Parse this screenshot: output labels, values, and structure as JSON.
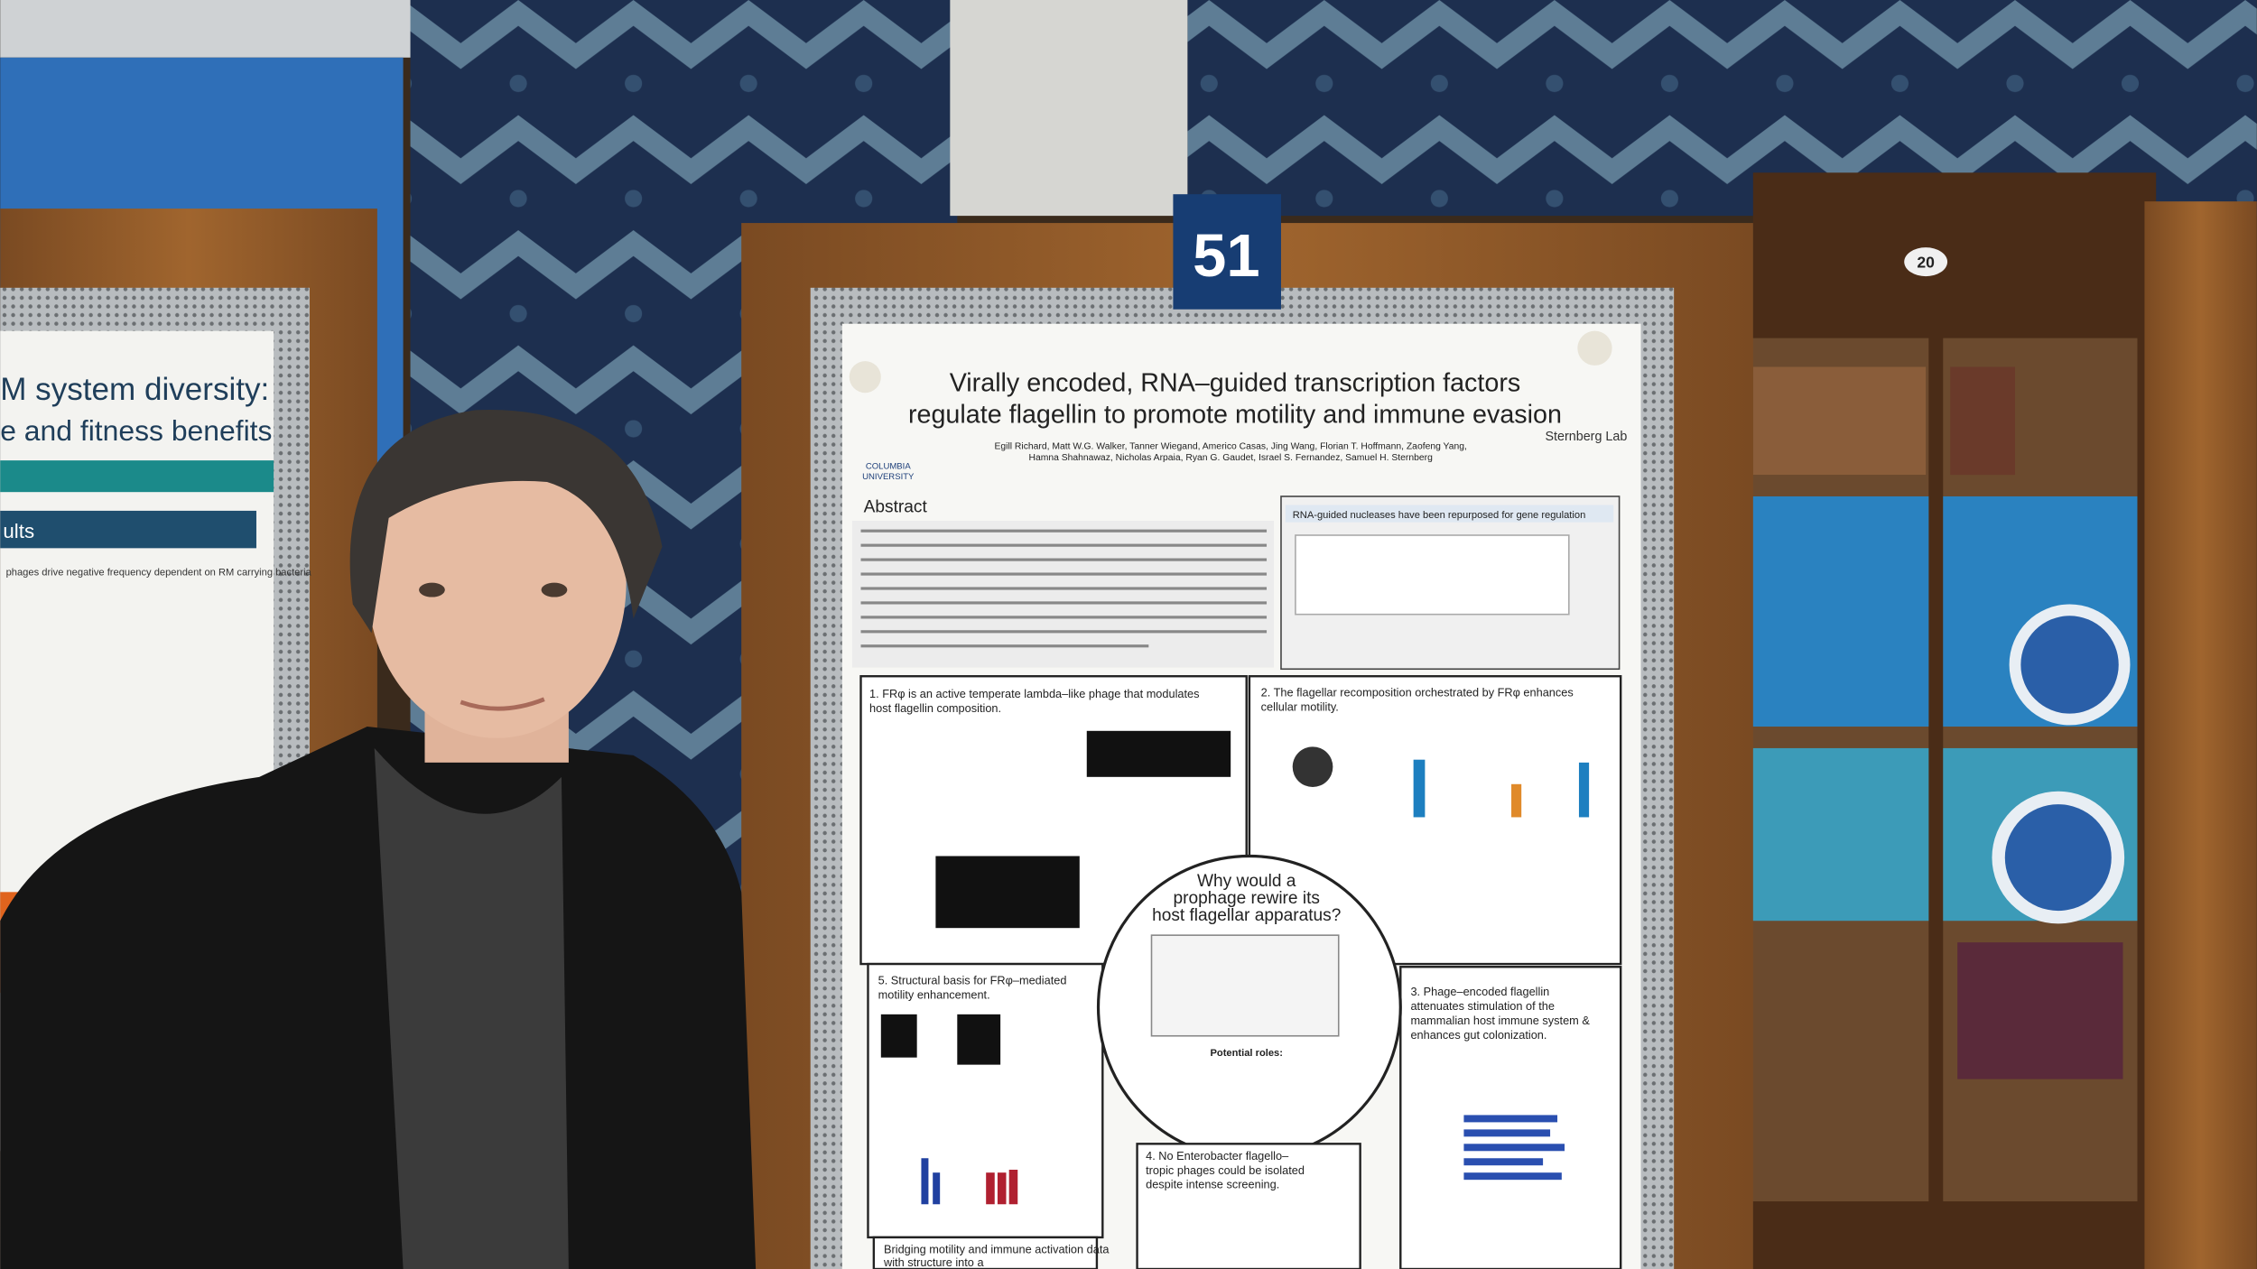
{
  "left_poster": {
    "title_lines": [
      "M system diversity:",
      "e and fitness benefits"
    ],
    "section": "ults",
    "text": "phages drive negative frequency dependent on RM carrying bacteria"
  },
  "board_number": "51",
  "cabinet_number": "20",
  "poster": {
    "title_lines": [
      "Virally encoded, RNA–guided transcription factors",
      "regulate flagellin to promote motility and immune evasion"
    ],
    "authors": "Egill Richard, Matt W.G. Walker, Tanner Wiegand, Americo Casas, Jing Wang, Florian T. Hoffmann, Zaofeng Yang,",
    "authors2": "Hamna Shahnawaz, Nicholas Arpaia, Ryan G. Gaudet, Israel S. Fernandez, Samuel H. Sternberg",
    "left_logo": [
      "COLUMBIA",
      "UNIVERSITY"
    ],
    "right_logo": "Sternberg Lab",
    "abstract_heading": "Abstract",
    "box_heading": "RNA-guided nucleases have been repurposed for gene regulation",
    "section1": [
      "1. FRφ is an active temperate lambda–like phage that modulates",
      "host flagellin composition."
    ],
    "section2": [
      "2. The flagellar recomposition orchestrated by FRφ enhances",
      "cellular motility."
    ],
    "question": [
      "Why would a",
      "prophage rewire its",
      "host flagellar apparatus?"
    ],
    "potential_roles": "Potential roles:",
    "section5": [
      "5. Structural basis for FRφ–mediated",
      "motility enhancement."
    ],
    "section3": [
      "3. Phage–encoded flagellin",
      "attenuates stimulation of the",
      "mammalian host immune system &",
      "enhances gut colonization."
    ],
    "section4": [
      "4. No Enterobacter flagello–",
      "tropic phages could be isolated",
      "despite intense screening."
    ],
    "bottom_box": [
      "Bridging motility and immune activation data",
      "with structure into a"
    ]
  }
}
